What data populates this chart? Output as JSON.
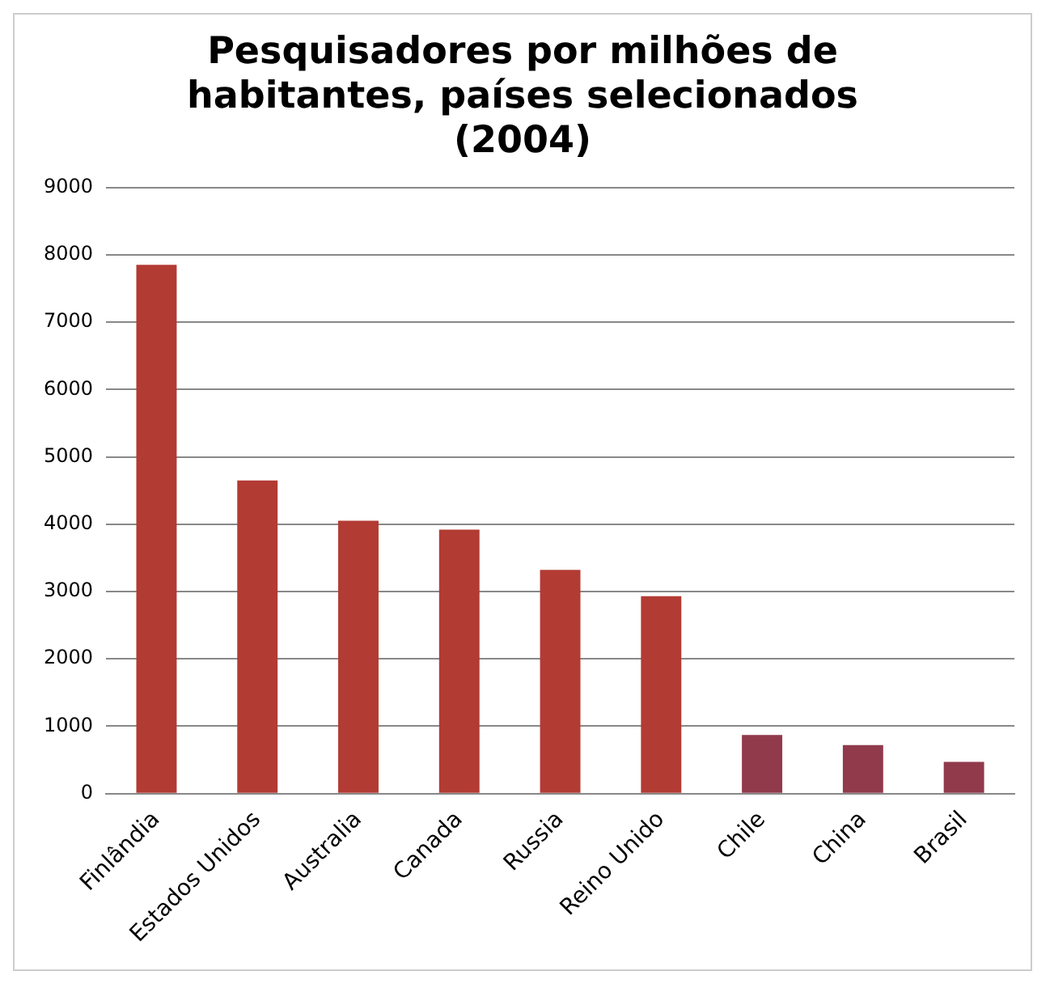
{
  "chart_data": {
    "type": "bar",
    "title": "Pesquisadores por milhões de habitantes, países selecionados (2004)",
    "categories": [
      "Finlândia",
      "Estados Unidos",
      "Australia",
      "Canada",
      "Russia",
      "Reino Unido",
      "Chile",
      "China",
      "Brasil"
    ],
    "values": [
      7850,
      4650,
      4050,
      3920,
      3320,
      2930,
      870,
      720,
      470
    ],
    "colors": [
      "#b23b33",
      "#b23b33",
      "#b23b33",
      "#b23b33",
      "#b23b33",
      "#b23b33",
      "#903a4c",
      "#903a4c",
      "#903a4c"
    ],
    "ylim": [
      0,
      9000
    ],
    "yticks": [
      0,
      1000,
      2000,
      3000,
      4000,
      5000,
      6000,
      7000,
      8000,
      9000
    ],
    "grid": "y",
    "legend": false
  }
}
